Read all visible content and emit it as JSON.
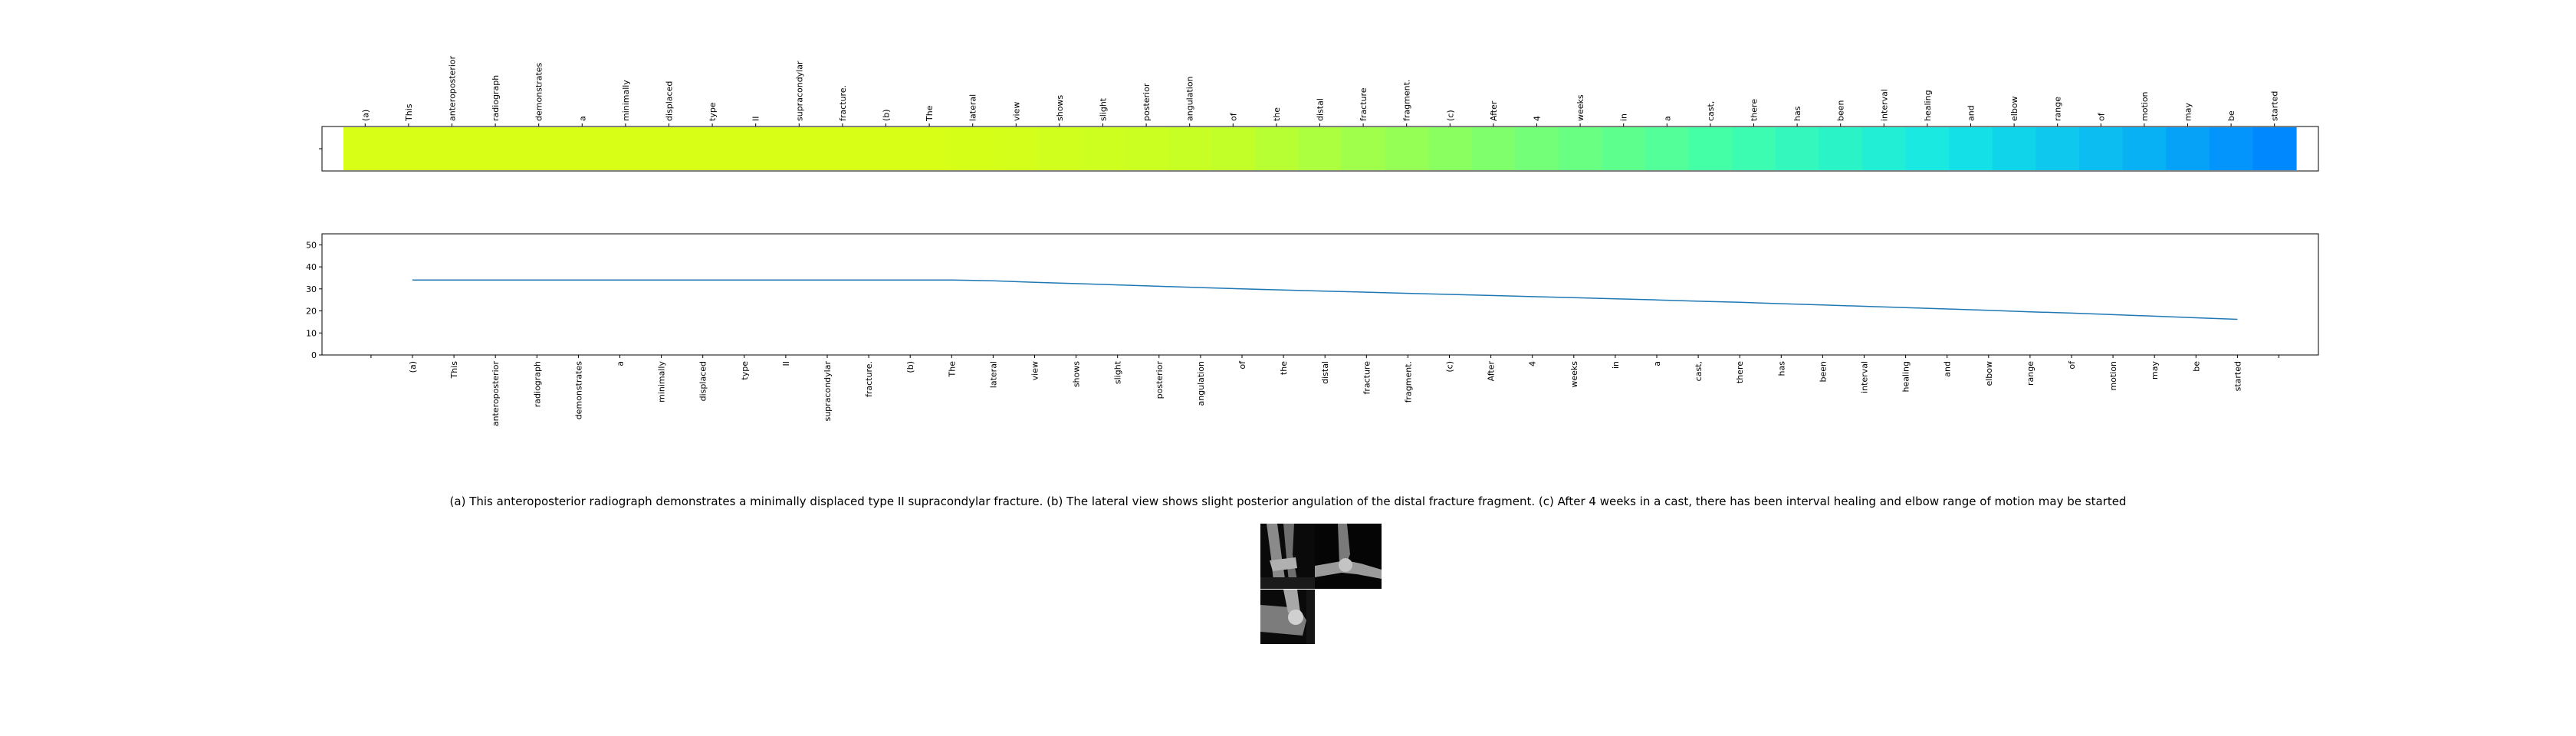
{
  "chart_data": [
    {
      "type": "heatmap",
      "tokens": [
        "(a)",
        "This",
        "anteroposterior",
        "radiograph",
        "demonstrates",
        "a",
        "minimally",
        "displaced",
        "type",
        "II",
        "supracondylar",
        "fracture.",
        "(b)",
        "The",
        "lateral",
        "view",
        "shows",
        "slight",
        "posterior",
        "angulation",
        "of",
        "the",
        "distal",
        "fracture",
        "fragment.",
        "(c)",
        "After",
        "4",
        "weeks",
        "in",
        "a",
        "cast,",
        "there",
        "has",
        "been",
        "interval",
        "healing",
        "and",
        "elbow",
        "range",
        "of",
        "motion",
        "may",
        "be",
        "started"
      ],
      "values": [
        34,
        34,
        34,
        34,
        34,
        34,
        34,
        34,
        34,
        34,
        34,
        34,
        34,
        34,
        33.7,
        33,
        32.4,
        31.8,
        31.2,
        30.6,
        30,
        29.5,
        29,
        28.5,
        28,
        27.5,
        27,
        26.5,
        26,
        25.5,
        25,
        24.4,
        23.9,
        23.3,
        22.7,
        22.1,
        21.5,
        20.9,
        20.3,
        19.6,
        19,
        18.3,
        17.6,
        16.9,
        16.2
      ],
      "colormap": "yellow-green-cyan-blue",
      "grid": false
    },
    {
      "type": "line",
      "x": [
        "(a)",
        "This",
        "anteroposterior",
        "radiograph",
        "demonstrates",
        "a",
        "minimally",
        "displaced",
        "type",
        "II",
        "supracondylar",
        "fracture.",
        "(b)",
        "The",
        "lateral",
        "view",
        "shows",
        "slight",
        "posterior",
        "angulation",
        "of",
        "the",
        "distal",
        "fracture",
        "fragment.",
        "(c)",
        "After",
        "4",
        "weeks",
        "in",
        "a",
        "cast,",
        "there",
        "has",
        "been",
        "interval",
        "healing",
        "and",
        "elbow",
        "range",
        "of",
        "motion",
        "may",
        "be",
        "started"
      ],
      "values": [
        34,
        34,
        34,
        34,
        34,
        34,
        34,
        34,
        34,
        34,
        34,
        34,
        34,
        34,
        33.7,
        33,
        32.4,
        31.8,
        31.2,
        30.6,
        30,
        29.5,
        29,
        28.5,
        28,
        27.5,
        27,
        26.5,
        26,
        25.5,
        25,
        24.4,
        23.9,
        23.3,
        22.7,
        22.1,
        21.5,
        20.9,
        20.3,
        19.6,
        19,
        18.3,
        17.6,
        16.9,
        16.2
      ],
      "yticks": [
        0,
        10,
        20,
        30,
        40,
        50
      ],
      "ylim": [
        0,
        55
      ],
      "line_color": "#1f77b4",
      "grid": false
    }
  ],
  "caption": "(a) This anteroposterior radiograph demonstrates a minimally displaced type II supracondylar fracture. (b) The lateral view shows slight posterior angulation of the distal fracture fragment. (c) After 4 weeks in a cast, there has been interval healing and elbow range of motion may be started",
  "thumbnails": [
    "radiograph-ap",
    "radiograph-lateral",
    "radiograph-follow-up"
  ]
}
